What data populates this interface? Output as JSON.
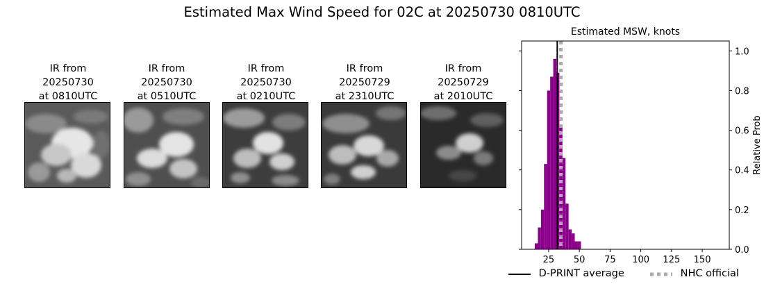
{
  "figure": {
    "title": "Estimated Max Wind Speed for 02C at 20250730 0810UTC"
  },
  "ir_panels": [
    {
      "title_lines": [
        "IR from",
        "20250730",
        "at 0810UTC"
      ]
    },
    {
      "title_lines": [
        "IR from",
        "20250730",
        "at 0510UTC"
      ]
    },
    {
      "title_lines": [
        "IR from",
        "20250730",
        "at 0210UTC"
      ]
    },
    {
      "title_lines": [
        "IR from",
        "20250729",
        "at 2310UTC"
      ]
    },
    {
      "title_lines": [
        "IR from",
        "20250729",
        "at 2010UTC"
      ]
    }
  ],
  "chart_data": {
    "type": "bar",
    "title": "Estimated MSW, knots",
    "xlabel": "",
    "ylabel": "Relative Prob",
    "xlim": [
      3,
      172
    ],
    "ylim": [
      0,
      1.05
    ],
    "xticks": [
      25,
      50,
      75,
      100,
      125,
      150
    ],
    "yticks": [
      0.0,
      0.2,
      0.4,
      0.6,
      0.8,
      1.0
    ],
    "ytick_labels": [
      "0.0",
      "0.2",
      "0.4",
      "0.6",
      "0.8",
      "1.0"
    ],
    "y_axis_side": "right",
    "bar_color": "#8b008b",
    "bin_width": 2.5,
    "bins": [
      {
        "x": 15,
        "y": 0.03
      },
      {
        "x": 17.5,
        "y": 0.11
      },
      {
        "x": 20,
        "y": 0.2
      },
      {
        "x": 22.5,
        "y": 0.43
      },
      {
        "x": 25,
        "y": 0.8
      },
      {
        "x": 27.5,
        "y": 0.87
      },
      {
        "x": 30,
        "y": 0.96
      },
      {
        "x": 32.5,
        "y": 0.89
      },
      {
        "x": 35,
        "y": 0.62
      },
      {
        "x": 37.5,
        "y": 0.46
      },
      {
        "x": 40,
        "y": 0.23
      },
      {
        "x": 42.5,
        "y": 0.1
      },
      {
        "x": 45,
        "y": 0.08
      },
      {
        "x": 47.5,
        "y": 0.04
      },
      {
        "x": 50,
        "y": 0.04
      }
    ],
    "lines": [
      {
        "name": "D-PRINT average",
        "x": 32,
        "color": "#000000",
        "style": "solid"
      },
      {
        "name": "NHC official",
        "x": 35,
        "color": "#aaaaaa",
        "style": "dotted"
      }
    ],
    "legend_position": "bottom"
  },
  "colors": {
    "ir_dark": "#2a2a2a",
    "ir_cloud": "#e8e8e8"
  }
}
